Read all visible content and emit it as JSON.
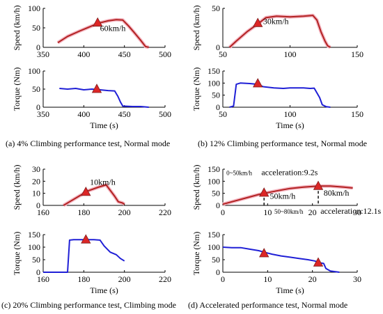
{
  "colors": {
    "speed": "#b22222",
    "speed_band": "#f4b6c2",
    "torque": "#1f1fd6",
    "marker": "#dc2626",
    "marker_edge": "#7f1d1d"
  },
  "chart_data": [
    {
      "type": "line",
      "panel": "a",
      "metric": "speed",
      "ylabel": "Speed (km/h)",
      "xlabel": "",
      "xlim": [
        350,
        500
      ],
      "ylim": [
        0,
        100
      ],
      "xticks": [
        350,
        400,
        450,
        500
      ],
      "yticks": [
        0,
        50,
        100
      ],
      "series": [
        {
          "x": [
            368,
            380,
            395,
            410,
            418,
            430,
            440,
            448,
            455,
            462,
            470,
            476,
            480
          ],
          "y": [
            12,
            28,
            42,
            55,
            62,
            68,
            71,
            70,
            55,
            38,
            18,
            2,
            0
          ]
        }
      ],
      "markers": [
        {
          "x": 417,
          "y": 63
        }
      ],
      "annotations": [
        {
          "text": "60km/h",
          "x": 420,
          "y": 42
        }
      ]
    },
    {
      "type": "line",
      "panel": "a",
      "metric": "torque",
      "ylabel": "Torque (Nm)",
      "xlabel": "Time (s)",
      "xlim": [
        350,
        500
      ],
      "ylim": [
        0,
        100
      ],
      "xticks": [
        350,
        400,
        450,
        500
      ],
      "yticks": [
        0,
        50,
        100
      ],
      "series": [
        {
          "x": [
            370,
            380,
            390,
            400,
            410,
            420,
            430,
            438,
            442,
            445,
            448,
            460,
            470,
            480
          ],
          "y": [
            52,
            50,
            52,
            48,
            50,
            48,
            46,
            45,
            30,
            15,
            3,
            2,
            2,
            0
          ]
        }
      ],
      "markers": [
        {
          "x": 416,
          "y": 50
        }
      ]
    },
    {
      "type": "line",
      "panel": "b",
      "metric": "speed",
      "ylabel": "Speed (km/h)",
      "xlabel": "",
      "xlim": [
        50,
        150
      ],
      "ylim": [
        0,
        50
      ],
      "xticks": [
        50,
        100,
        150
      ],
      "yticks": [
        0,
        50
      ],
      "series": [
        {
          "x": [
            55,
            60,
            68,
            76,
            82,
            90,
            100,
            110,
            117,
            120,
            123,
            126,
            128,
            130
          ],
          "y": [
            0,
            8,
            20,
            30,
            38,
            40,
            39,
            40,
            41,
            35,
            20,
            8,
            2,
            0
          ]
        }
      ],
      "markers": [
        {
          "x": 76,
          "y": 31
        }
      ],
      "annotations": [
        {
          "text": "30km/h",
          "x": 80,
          "y": 30
        }
      ]
    },
    {
      "type": "line",
      "panel": "b",
      "metric": "torque",
      "ylabel": "Torque (Nm)",
      "xlabel": "Time (s)",
      "xlim": [
        50,
        150
      ],
      "ylim": [
        0,
        150
      ],
      "xticks": [
        50,
        100,
        150
      ],
      "yticks": [
        0,
        50,
        100,
        150
      ],
      "series": [
        {
          "x": [
            55,
            58,
            60,
            63,
            70,
            76,
            80,
            88,
            95,
            100,
            110,
            115,
            118,
            122,
            124,
            127,
            130
          ],
          "y": [
            0,
            5,
            95,
            100,
            98,
            95,
            85,
            80,
            78,
            80,
            80,
            78,
            79,
            40,
            10,
            2,
            0
          ]
        }
      ],
      "markers": [
        {
          "x": 76,
          "y": 98
        }
      ]
    },
    {
      "type": "line",
      "panel": "c",
      "metric": "speed",
      "ylabel": "Speed (km/h)",
      "xlabel": "",
      "xlim": [
        160,
        220
      ],
      "ylim": [
        0,
        30
      ],
      "xticks": [
        160,
        180,
        200,
        220
      ],
      "yticks": [
        0,
        10,
        20,
        30
      ],
      "series": [
        {
          "x": [
            170,
            173,
            178,
            182,
            187,
            191,
            195,
            197,
            199,
            200
          ],
          "y": [
            0,
            3,
            8,
            12,
            15,
            17,
            8,
            3,
            2,
            1
          ]
        }
      ],
      "markers": [
        {
          "x": 181,
          "y": 11
        }
      ],
      "annotations": [
        {
          "text": "10km/h",
          "x": 183,
          "y": 17
        }
      ]
    },
    {
      "type": "line",
      "panel": "c",
      "metric": "torque",
      "ylabel": "Torque (Nm)",
      "xlabel": "Time (s)",
      "xlim": [
        160,
        220
      ],
      "ylim": [
        0,
        150
      ],
      "xticks": [
        160,
        180,
        200,
        220
      ],
      "yticks": [
        0,
        50,
        100,
        150
      ],
      "series": [
        {
          "x": [
            160,
            172,
            173,
            175,
            180,
            185,
            188,
            190,
            193,
            196,
            198,
            200
          ],
          "y": [
            0,
            0,
            128,
            130,
            130,
            130,
            128,
            105,
            80,
            70,
            55,
            45
          ]
        }
      ],
      "markers": [
        {
          "x": 181,
          "y": 130
        }
      ]
    },
    {
      "type": "line",
      "panel": "d",
      "metric": "speed",
      "ylabel": "Speed (km/h)",
      "xlabel": "",
      "xlim": [
        0,
        30
      ],
      "ylim": [
        0,
        150
      ],
      "xticks": [
        0,
        10,
        20,
        30
      ],
      "yticks": [
        0,
        50,
        100,
        150
      ],
      "series": [
        {
          "x": [
            0,
            2,
            5,
            8,
            9.2,
            12,
            15,
            18,
            21.3,
            24,
            27,
            29
          ],
          "y": [
            5,
            15,
            30,
            45,
            50,
            60,
            70,
            76,
            80,
            80,
            76,
            72
          ]
        }
      ],
      "markers": [
        {
          "x": 9.2,
          "y": 52
        },
        {
          "x": 21.3,
          "y": 80
        }
      ],
      "guides": [
        {
          "x": 9.2,
          "y": 52
        },
        {
          "x": 21.3,
          "y": 80
        }
      ],
      "annotations": [
        {
          "text": "0~50km/h",
          "x": 0.8,
          "y": 126,
          "size": "small"
        },
        {
          "text": "acceleration:9.2s",
          "x": 8.6,
          "y": 126
        },
        {
          "text": "50km/h",
          "x": 10.5,
          "y": 28
        },
        {
          "text": "80km/h",
          "x": 22.5,
          "y": 40
        },
        {
          "text": "50~80km/h",
          "x": 11.5,
          "y": -35,
          "size": "small"
        },
        {
          "text": "acceleration:12.1s",
          "x": 21.8,
          "y": -35
        }
      ]
    },
    {
      "type": "line",
      "panel": "d",
      "metric": "torque",
      "ylabel": "Torque (Nm)",
      "xlabel": "Time (s)",
      "xlim": [
        0,
        30
      ],
      "ylim": [
        0,
        150
      ],
      "xticks": [
        0,
        10,
        20,
        30
      ],
      "yticks": [
        0,
        50,
        100,
        150
      ],
      "series": [
        {
          "x": [
            0,
            2,
            4,
            6,
            8,
            9.2,
            11,
            13,
            15,
            17,
            19,
            20.5,
            21.5,
            22.5,
            23,
            24,
            26
          ],
          "y": [
            100,
            98,
            98,
            92,
            86,
            80,
            72,
            65,
            60,
            55,
            50,
            45,
            38,
            35,
            15,
            5,
            0
          ]
        }
      ],
      "markers": [
        {
          "x": 9.2,
          "y": 75
        },
        {
          "x": 21.3,
          "y": 38
        }
      ]
    }
  ],
  "captions": [
    {
      "id": "a",
      "text": "(a) 4% Climbing performance test, Normal mode"
    },
    {
      "id": "b",
      "text": "(b) 12% Climbing performance test, Normal mode"
    },
    {
      "id": "c",
      "text": "(c) 20% Climbing performance test, Climbing mode"
    },
    {
      "id": "d",
      "text": "(d) Accelerated performance test, Normal mode"
    }
  ]
}
